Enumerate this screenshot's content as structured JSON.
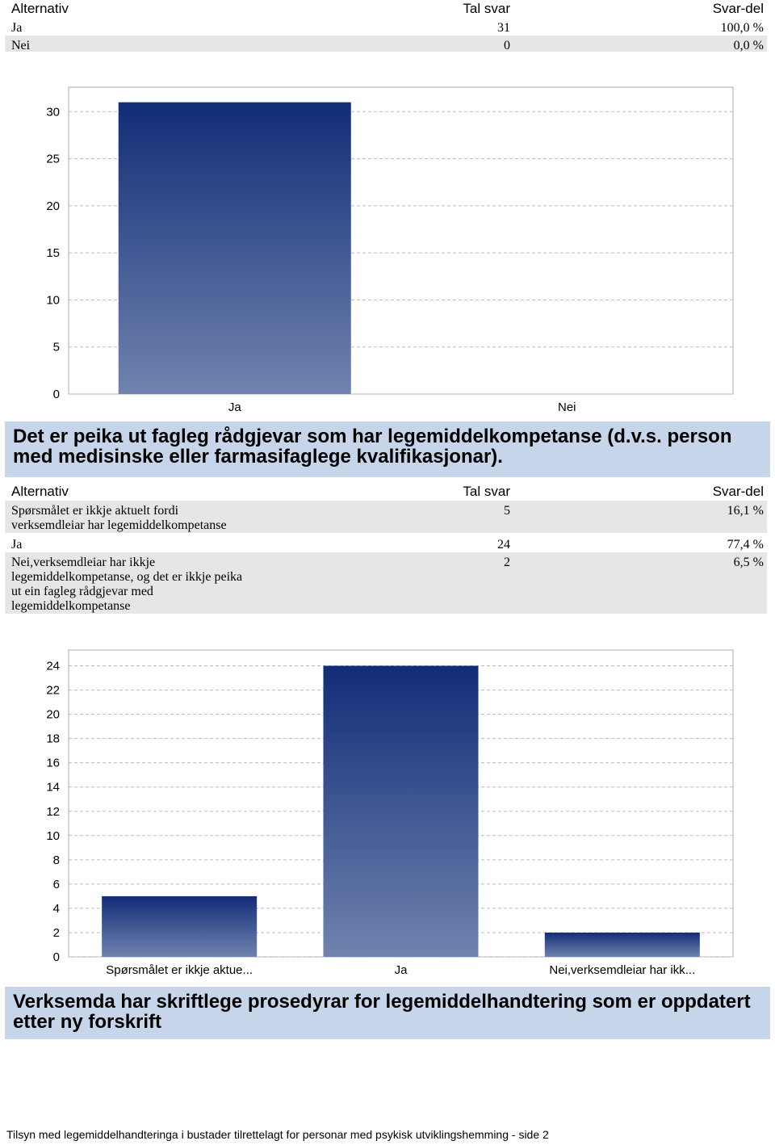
{
  "sections": [
    {
      "table": {
        "header": [
          "Alternativ",
          "Tal svar",
          "Svar-del"
        ],
        "rows": [
          [
            "Ja",
            31,
            "100,0 %"
          ],
          [
            "Nei",
            0,
            "0,0 %"
          ]
        ]
      },
      "chart": {
        "type": "bar",
        "categories": [
          "Ja",
          "Nei"
        ],
        "values": [
          31,
          0
        ],
        "ylim": [
          0,
          32.6
        ],
        "yticks": [
          0,
          5,
          10,
          15,
          20,
          25,
          30
        ],
        "grid": true
      }
    },
    {
      "heading": "Det er peika ut fagleg rådgjevar som har legemiddelkompetanse (d.v.s. person med medisinske eller farmasifaglege kvalifikasjonar).",
      "table": {
        "header": [
          "Alternativ",
          "Tal svar",
          "Svar-del"
        ],
        "rows": [
          [
            "Spørsmålet er ikkje aktuelt fordi verksemdleiar har legemiddelkompetanse",
            5,
            "16,1 %"
          ],
          [
            "Ja",
            24,
            "77,4 %"
          ],
          [
            "Nei,verksemdleiar har ikkje legemiddelkompetanse, og det er ikkje peika ut ein fagleg rådgjevar med legemiddelkompetanse",
            2,
            "6,5 %"
          ]
        ]
      },
      "chart": {
        "type": "bar",
        "categories": [
          "Spørsmålet er ikkje aktue...",
          "Ja",
          "Nei,verksemdleiar har ikk..."
        ],
        "values": [
          5,
          24,
          2
        ],
        "ylim": [
          0,
          25.3
        ],
        "yticks": [
          0,
          2,
          4,
          6,
          8,
          10,
          12,
          14,
          16,
          18,
          20,
          22,
          24
        ],
        "grid": true
      }
    },
    {
      "heading": "Verksemda har skriftlege prosedyrar for legemiddelhandtering som er oppdatert etter ny forskrift"
    }
  ],
  "footer": "Tilsyn med legemiddelhandteringa i bustader tilrettelagt for personar med psykisk utviklingshemming - side 2"
}
